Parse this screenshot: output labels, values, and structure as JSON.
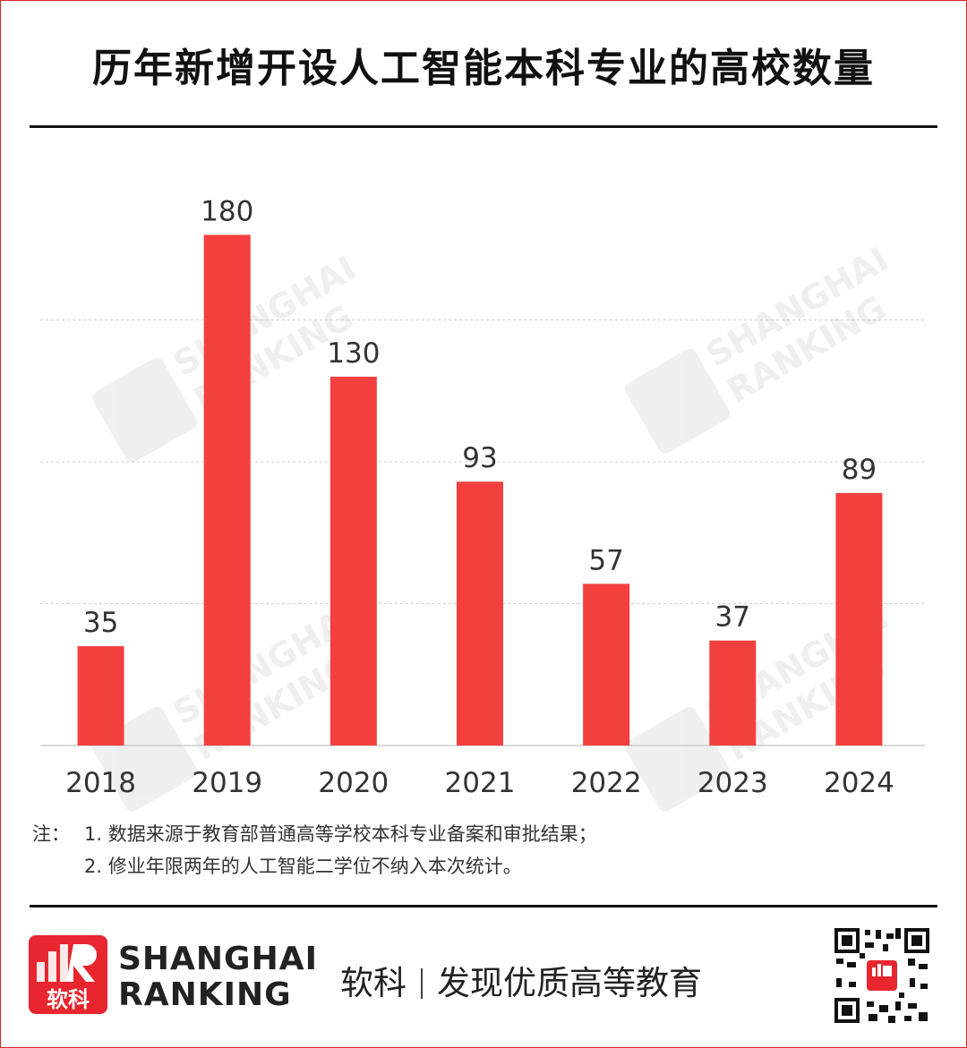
{
  "title": "历年新增开设人工智能本科专业的高校数量",
  "chart_data": {
    "type": "bar",
    "title": "历年新增开设人工智能本科专业的高校数量",
    "categories": [
      "2018",
      "2019",
      "2020",
      "2021",
      "2022",
      "2023",
      "2024"
    ],
    "values": [
      35,
      180,
      130,
      93,
      57,
      37,
      89
    ],
    "ylim": [
      0,
      200
    ],
    "grid": true,
    "xlabel": "",
    "ylabel": "",
    "bar_color": "#f43f3f"
  },
  "notes": {
    "prefix": "注：",
    "items": [
      "1. 数据来源于教育部普通高等学校本科专业备案和审批结果；",
      "2. 修业年限两年的人工智能二学位不纳入本次统计。"
    ]
  },
  "footer": {
    "logo_cn": "软科",
    "brand_line1": "SHANGHAI",
    "brand_line2": "RANKING",
    "slogan_left": "软科",
    "slogan_right": "发现优质高等教育"
  },
  "watermark": {
    "line1": "SHANGHAI",
    "line2": "RANKING"
  },
  "colors": {
    "accent": "#e8262f",
    "bar": "#f43f3f",
    "grid": "#cfcfcf"
  }
}
